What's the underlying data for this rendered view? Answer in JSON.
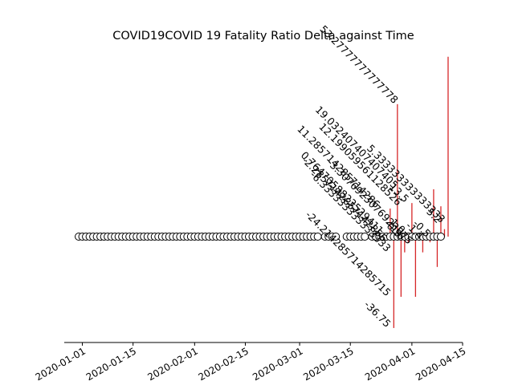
{
  "chart_data": {
    "type": "scatter",
    "title": "COVID19COVID 19 Fatality Ratio Delta against Time",
    "xlabel": "",
    "ylabel": "",
    "grid": false,
    "x_start": "2019-12-31",
    "x_end": "2020-04-09",
    "xlim": [
      "2019-12-27",
      "2020-04-15"
    ],
    "x_ticks": [
      "2020-01-01",
      "2020-01-15",
      "2020-02-01",
      "2020-02-15",
      "2020-03-01",
      "2020-03-15",
      "2020-04-01",
      "2020-04-15"
    ],
    "gaps": [
      "2020-03-07",
      "2020-03-12",
      "2020-03-13",
      "2020-03-20"
    ],
    "colors": {
      "marker_face": "#ffffff",
      "marker_edge": "#000000",
      "stem": "#d62728"
    },
    "annotations": [
      {
        "x": "2020-03-22",
        "y": 11.285714285714286,
        "label": "11.285714285714286"
      },
      {
        "x": "2020-03-23",
        "y": 0.7647058823529411,
        "label": "0.7647058823529411"
      },
      {
        "x": "2020-03-24",
        "y": -2.2857142857142856,
        "label": "-2.2857142857142856"
      },
      {
        "x": "2020-03-25",
        "y": -6.333333333333333,
        "label": "-6.333333333333333"
      },
      {
        "x": "2020-03-25",
        "y": -24.214285714285715,
        "label": "-24.214285714285715"
      },
      {
        "x": "2020-03-25",
        "y": -36.75,
        "label": "-36.75"
      },
      {
        "x": "2020-03-27",
        "y": 53.27777777777778,
        "label": "53.27777777777778"
      },
      {
        "x": "2020-03-27",
        "y": 19.032407407407405,
        "label": "19.032407407407405"
      },
      {
        "x": "2020-03-28",
        "y": -0.5,
        "label": "-0.5"
      },
      {
        "x": "2020-03-28",
        "y": 12.199059561128527,
        "label": "12.199059561128526"
      },
      {
        "x": "2020-03-29",
        "y": -1.6,
        "label": "-1.6"
      },
      {
        "x": "2020-03-29",
        "y": 1.0,
        "label": "1.0"
      },
      {
        "x": "2020-03-30",
        "y": 13.5,
        "label": "13.5"
      },
      {
        "x": "2020-03-31",
        "y": -3.3076923076923075,
        "label": "-3.3076923076923075"
      },
      {
        "x": "2020-04-03",
        "y": -1.4,
        "label": "-1.4"
      },
      {
        "x": "2020-04-05",
        "y": -0.5,
        "label": "-0.5"
      },
      {
        "x": "2020-04-08",
        "y": 5.2,
        "label": "5.2"
      },
      {
        "x": "2020-04-09",
        "y": 5.333333333333333,
        "label": "5.333333333333333"
      }
    ],
    "stems": [
      {
        "x": "2020-03-26",
        "y": 11.285714285714286
      },
      {
        "x": "2020-03-27",
        "y": -36.75
      },
      {
        "x": "2020-03-28",
        "y": 53.27777777777778
      },
      {
        "x": "2020-03-29",
        "y": -24.214285714285715
      },
      {
        "x": "2020-03-30",
        "y": -6.333333333333333
      },
      {
        "x": "2020-03-31",
        "y": -2.2857142857142856
      },
      {
        "x": "2020-04-01",
        "y": 13.5
      },
      {
        "x": "2020-04-02",
        "y": -24.214285714285715
      },
      {
        "x": "2020-04-03",
        "y": 0.7647058823529411
      },
      {
        "x": "2020-04-04",
        "y": -6.333333333333333
      },
      {
        "x": "2020-04-05",
        "y": 0.5
      },
      {
        "x": "2020-04-06",
        "y": -2.2857142857142856
      },
      {
        "x": "2020-04-07",
        "y": 19.032407407407405
      },
      {
        "x": "2020-04-08",
        "y": -12.199059561128527
      },
      {
        "x": "2020-04-09",
        "y": 12.199059561128527
      },
      {
        "x": "2020-04-10",
        "y": 3.0
      },
      {
        "x": "2020-04-11",
        "y": 72.33333333333333
      }
    ],
    "ylim": [
      -40,
      80
    ]
  }
}
